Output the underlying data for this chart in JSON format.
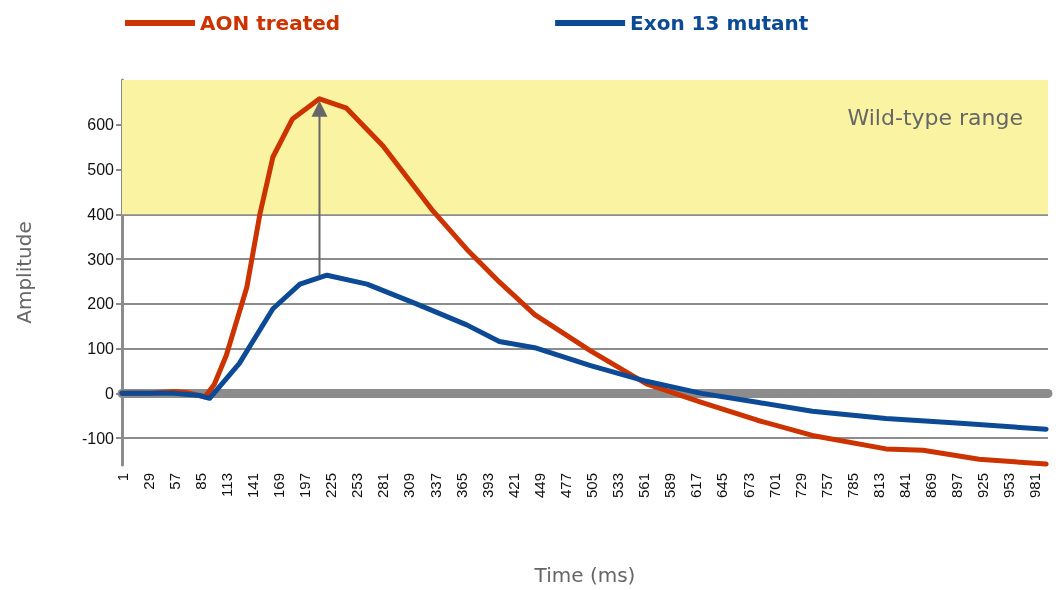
{
  "chart_data": {
    "type": "line",
    "xlabel": "Time (ms)",
    "ylabel": "Amplitude",
    "xlim": [
      1,
      995
    ],
    "ylim": [
      -160,
      700
    ],
    "xticks": [
      1,
      29,
      57,
      85,
      113,
      141,
      169,
      197,
      225,
      253,
      281,
      309,
      337,
      365,
      393,
      421,
      449,
      477,
      505,
      533,
      561,
      589,
      617,
      645,
      673,
      701,
      729,
      757,
      785,
      813,
      841,
      869,
      897,
      925,
      953,
      981
    ],
    "yticks": [
      -100,
      0,
      100,
      200,
      300,
      400,
      500,
      600
    ],
    "grid": "y",
    "legend": "top",
    "marker": "none",
    "line_style": "solid",
    "bands": [
      {
        "axis": "y",
        "from": 400,
        "to": 700,
        "label": "Wild-type range",
        "color": "#faf4a2"
      }
    ],
    "series": [
      {
        "name": "AON treated",
        "color": "#cc3300",
        "x": [
          1,
          29,
          57,
          70,
          90,
          100,
          113,
          135,
          149,
          163,
          184,
          213,
          242,
          281,
          335,
          371,
          406,
          444,
          504,
          564,
          623,
          683,
          742,
          821,
          861,
          921,
          993
        ],
        "values": [
          0,
          0,
          4,
          2,
          -8,
          20,
          85,
          237,
          400,
          528,
          613,
          658,
          637,
          553,
          407,
          322,
          249,
          176,
          95,
          21,
          -20,
          -60,
          -94,
          -124,
          -127,
          -147,
          -158
        ]
      },
      {
        "name": "Exon 13 mutant",
        "color": "#0d4a96",
        "x": [
          1,
          57,
          85,
          95,
          127,
          163,
          192,
          221,
          264,
          317,
          371,
          406,
          444,
          504,
          564,
          623,
          683,
          742,
          821,
          901,
          993
        ],
        "values": [
          0,
          0,
          -5,
          -11,
          67,
          189,
          244,
          264,
          244,
          200,
          153,
          116,
          102,
          62,
          27,
          0,
          -20,
          -40,
          -56,
          -67,
          -80
        ]
      }
    ]
  }
}
